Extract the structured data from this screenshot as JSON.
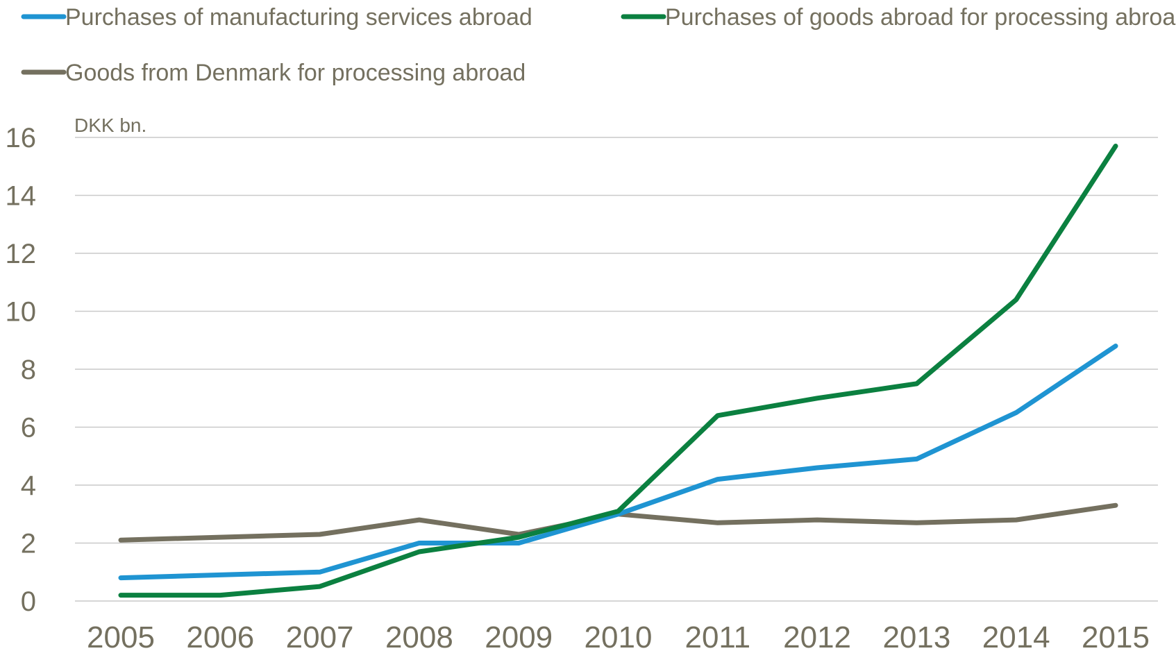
{
  "chart_data": {
    "type": "line",
    "unit_label": "DKK bn.",
    "title": "",
    "xlabel": "",
    "ylabel": "",
    "categories": [
      "2005",
      "2006",
      "2007",
      "2008",
      "2009",
      "2010",
      "2011",
      "2012",
      "2013",
      "2014",
      "2015"
    ],
    "ylim": [
      0,
      16
    ],
    "yticks": [
      "0",
      "2",
      "4",
      "6",
      "8",
      "10",
      "12",
      "14",
      "16"
    ],
    "grid": true,
    "legend_position": "top",
    "series": [
      {
        "name": "Purchases of manufacturing services abroad",
        "color": "#1f94d2",
        "values": [
          0.8,
          0.9,
          1.0,
          2.0,
          2.0,
          3.0,
          4.2,
          4.6,
          4.9,
          6.5,
          8.8
        ]
      },
      {
        "name": "Purchases of goods abroad for processing abroad",
        "color": "#0b8040",
        "values": [
          0.2,
          0.2,
          0.5,
          1.7,
          2.2,
          3.1,
          6.4,
          7.0,
          7.5,
          10.4,
          15.7
        ]
      },
      {
        "name": "Goods from Denmark for processing abroad",
        "color": "#74705f",
        "values": [
          2.1,
          2.2,
          2.3,
          2.8,
          2.3,
          3.0,
          2.7,
          2.8,
          2.7,
          2.8,
          3.3
        ]
      }
    ]
  }
}
